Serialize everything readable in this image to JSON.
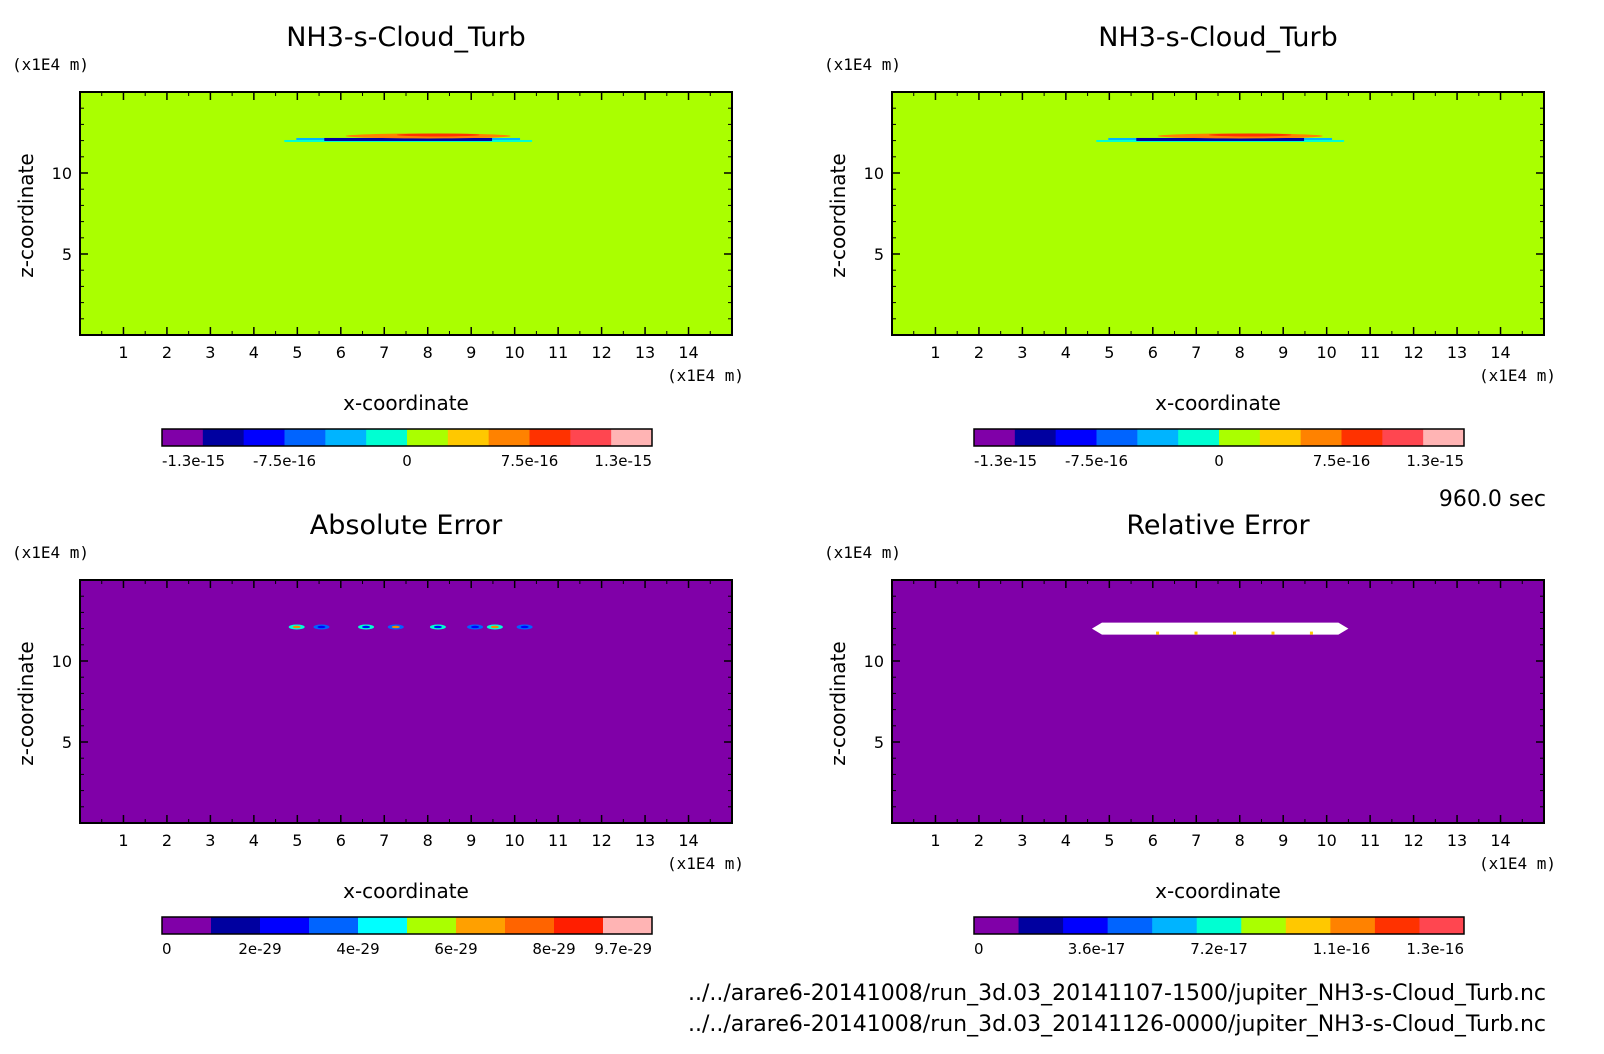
{
  "chart_data": [
    {
      "type": "heatmap",
      "title": "NH3-s-Cloud_Turb",
      "xlabel": "x-coordinate",
      "ylabel": "z-coordinate",
      "x_unit": "(x1E4 m)",
      "y_unit": "(x1E4 m)",
      "xlim": [
        0,
        15
      ],
      "ylim": [
        0,
        15
      ],
      "x_ticks": [
        "1",
        "2",
        "3",
        "4",
        "5",
        "6",
        "7",
        "8",
        "9",
        "10",
        "11",
        "12",
        "13",
        "14"
      ],
      "y_ticks": [
        "5",
        "10"
      ],
      "background_color": "#aaff00",
      "feature": {
        "x_range": [
          4.7,
          10.4
        ],
        "z": 12.1
      },
      "colorbar": {
        "colors": [
          "#8000a8",
          "#0000a0",
          "#0000ff",
          "#0064ff",
          "#00b4ff",
          "#00ffd2",
          "#aaff00",
          "#ffc800",
          "#ff8200",
          "#ff3200",
          "#ff4650",
          "#ffb4b4"
        ],
        "labels": [
          "-1.3e-15",
          "-7.5e-16",
          "0",
          "7.5e-16",
          "1.3e-15"
        ]
      }
    },
    {
      "type": "heatmap",
      "title": "NH3-s-Cloud_Turb",
      "xlabel": "x-coordinate",
      "ylabel": "z-coordinate",
      "x_unit": "(x1E4 m)",
      "y_unit": "(x1E4 m)",
      "xlim": [
        0,
        15
      ],
      "ylim": [
        0,
        15
      ],
      "x_ticks": [
        "1",
        "2",
        "3",
        "4",
        "5",
        "6",
        "7",
        "8",
        "9",
        "10",
        "11",
        "12",
        "13",
        "14"
      ],
      "y_ticks": [
        "5",
        "10"
      ],
      "background_color": "#aaff00",
      "feature": {
        "x_range": [
          4.7,
          10.4
        ],
        "z": 12.1
      },
      "colorbar": {
        "colors": [
          "#8000a8",
          "#0000a0",
          "#0000ff",
          "#0064ff",
          "#00b4ff",
          "#00ffd2",
          "#aaff00",
          "#ffc800",
          "#ff8200",
          "#ff3200",
          "#ff4650",
          "#ffb4b4"
        ],
        "labels": [
          "-1.3e-15",
          "-7.5e-16",
          "0",
          "7.5e-16",
          "1.3e-15"
        ]
      }
    },
    {
      "type": "heatmap",
      "title": "Absolute Error",
      "xlabel": "x-coordinate",
      "ylabel": "z-coordinate",
      "x_unit": "(x1E4 m)",
      "y_unit": "(x1E4 m)",
      "xlim": [
        0,
        15
      ],
      "ylim": [
        0,
        15
      ],
      "x_ticks": [
        "1",
        "2",
        "3",
        "4",
        "5",
        "6",
        "7",
        "8",
        "9",
        "10",
        "11",
        "12",
        "13",
        "14"
      ],
      "y_ticks": [
        "5",
        "10"
      ],
      "background_color": "#8000a8",
      "feature": {
        "x_range": [
          4.7,
          10.4
        ],
        "z": 12.1
      },
      "colorbar": {
        "colors": [
          "#8000a8",
          "#0000a0",
          "#0000ff",
          "#0064ff",
          "#00ffff",
          "#aaff00",
          "#ffa000",
          "#ff6400",
          "#ff1e00",
          "#ffb4b4"
        ],
        "labels": [
          "0",
          "2e-29",
          "4e-29",
          "6e-29",
          "8e-29",
          "9.7e-29"
        ]
      }
    },
    {
      "type": "heatmap",
      "title": "Relative Error",
      "xlabel": "x-coordinate",
      "ylabel": "z-coordinate",
      "x_unit": "(x1E4 m)",
      "y_unit": "(x1E4 m)",
      "xlim": [
        0,
        15
      ],
      "ylim": [
        0,
        15
      ],
      "x_ticks": [
        "1",
        "2",
        "3",
        "4",
        "5",
        "6",
        "7",
        "8",
        "9",
        "10",
        "11",
        "12",
        "13",
        "14"
      ],
      "y_ticks": [
        "5",
        "10"
      ],
      "background_color": "#8000a8",
      "feature": {
        "x_range": [
          4.6,
          10.5
        ],
        "z": 12.0
      },
      "colorbar": {
        "colors": [
          "#8000a8",
          "#0000a0",
          "#0000ff",
          "#0064ff",
          "#00b4ff",
          "#00ffd2",
          "#aaff00",
          "#ffc800",
          "#ff8200",
          "#ff3200",
          "#ff4650"
        ],
        "labels": [
          "0",
          "3.6e-17",
          "7.2e-17",
          "1.1e-16",
          "1.3e-16"
        ]
      }
    }
  ],
  "time_label": "960.0 sec",
  "file_paths": [
    "../../arare6-20141008/run_3d.03_20141107-1500/jupiter_NH3-s-Cloud_Turb.nc",
    "../../arare6-20141008/run_3d.03_20141126-0000/jupiter_NH3-s-Cloud_Turb.nc"
  ]
}
